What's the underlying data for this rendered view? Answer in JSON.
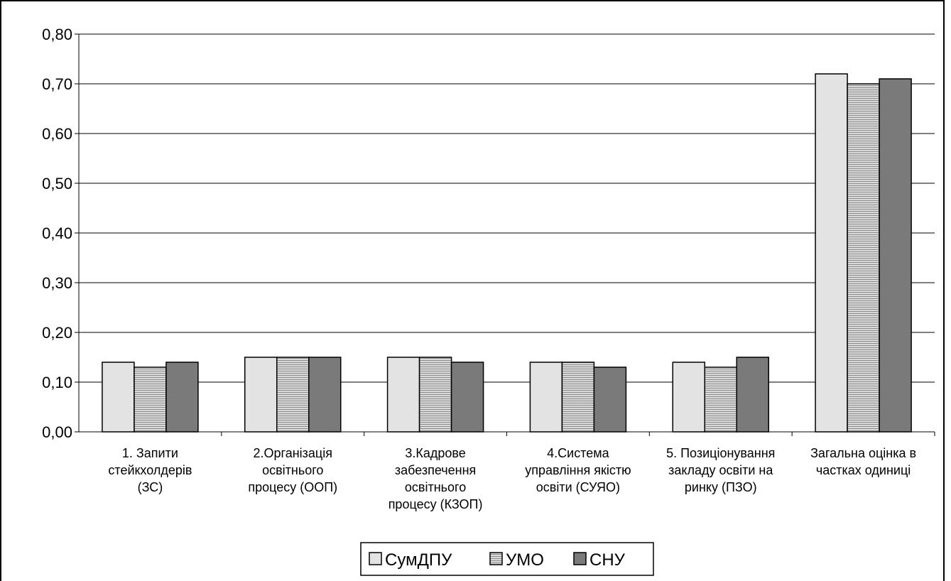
{
  "chart_data": {
    "type": "bar",
    "categories": [
      [
        "1. Запити",
        "стейкхолдерів",
        "(ЗС)"
      ],
      [
        "2.Організація",
        "освітнього",
        "процесу (ООП)"
      ],
      [
        "3.Кадрове",
        "забезпечення",
        "освітнього",
        "процесу (КЗОП)"
      ],
      [
        "4.Система",
        "управління якістю",
        "освіти (СУЯО)"
      ],
      [
        "5. Позиціонування",
        "закладу освіти на",
        "ринку (ПЗО)"
      ],
      [
        "Загальна оцінка в",
        "частках одиниці"
      ]
    ],
    "series": [
      {
        "name": "СумДПУ",
        "values": [
          0.14,
          0.15,
          0.15,
          0.14,
          0.14,
          0.72
        ],
        "color": "#e3e3e3",
        "pattern": "solid"
      },
      {
        "name": "УМО",
        "values": [
          0.13,
          0.15,
          0.15,
          0.14,
          0.13,
          0.7
        ],
        "color": "#b2b2b2",
        "pattern": "horizontal-lines"
      },
      {
        "name": "СНУ",
        "values": [
          0.14,
          0.15,
          0.14,
          0.13,
          0.15,
          0.71
        ],
        "color": "#7a7a7a",
        "pattern": "solid"
      }
    ],
    "ylim": [
      0,
      0.8
    ],
    "yticks": [
      "0,00",
      "0,10",
      "0,20",
      "0,30",
      "0,40",
      "0,50",
      "0,60",
      "0,70",
      "0,80"
    ],
    "grid": true,
    "legend_position": "bottom-center"
  }
}
